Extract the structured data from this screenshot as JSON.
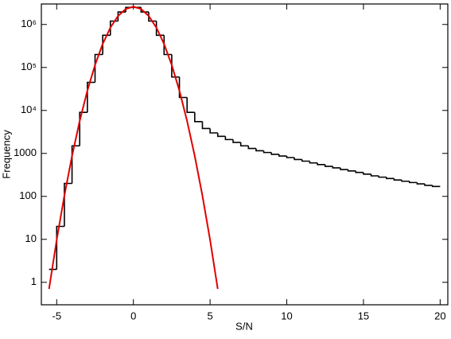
{
  "chart_data": {
    "type": "histogram",
    "xlabel": "S/N",
    "ylabel": "Frequency",
    "xlim": [
      -6,
      20.5
    ],
    "xticks": [
      -5,
      0,
      5,
      10,
      15,
      20
    ],
    "ylim": [
      0.3,
      3000000
    ],
    "log_y": true,
    "yticks": [
      1,
      10,
      100,
      1000,
      {
        "value": 10000,
        "label": "10⁴"
      },
      {
        "value": 100000,
        "label": "10⁵"
      },
      {
        "value": 1000000,
        "label": "10⁶"
      }
    ],
    "bins": [
      -5.5,
      -5,
      -4.5,
      -4,
      -3.5,
      -3,
      -2.5,
      -2,
      -1.5,
      -1,
      -0.5,
      0,
      0.5,
      1,
      1.5,
      2,
      2.5,
      3,
      3.5,
      4,
      4.5,
      5,
      5.5,
      6,
      6.5,
      7,
      7.5,
      8,
      8.5,
      9,
      9.5,
      10,
      10.5,
      11,
      11.5,
      12,
      12.5,
      13,
      13.5,
      14,
      14.5,
      15,
      15.5,
      16,
      16.5,
      17,
      17.5,
      18,
      18.5,
      19,
      19.5,
      20
    ],
    "series": [
      {
        "color": "#000000",
        "values": [
          2,
          20,
          200,
          1500,
          9000,
          45000,
          200000,
          560000,
          1200000,
          1950000,
          2500000,
          2500000,
          1950000,
          1200000,
          560000,
          200000,
          60000,
          20000,
          9000,
          5500,
          3800,
          3000,
          2500,
          2100,
          1800,
          1500,
          1300,
          1150,
          1050,
          950,
          870,
          800,
          720,
          660,
          600,
          550,
          500,
          460,
          420,
          390,
          360,
          330,
          300,
          280,
          260,
          240,
          225,
          210,
          195,
          180,
          170
        ]
      },
      {
        "color": "#e00000",
        "x": [
          -5.5,
          -5,
          -4.5,
          -4,
          -3.5,
          -3,
          -2.5,
          -2,
          -1.5,
          -1,
          -0.5,
          0,
          0.5,
          1,
          1.5,
          2,
          2.5,
          3,
          3.5,
          4,
          4.5,
          5,
          5.5
        ],
        "values": [
          0.7,
          9.7,
          104,
          871,
          5690,
          28900,
          114000,
          352000,
          844000,
          1577000,
          2294000,
          2600000,
          2294000,
          1577000,
          844000,
          352000,
          114000,
          28900,
          5690,
          871,
          104,
          9.7,
          0.7
        ]
      }
    ]
  }
}
